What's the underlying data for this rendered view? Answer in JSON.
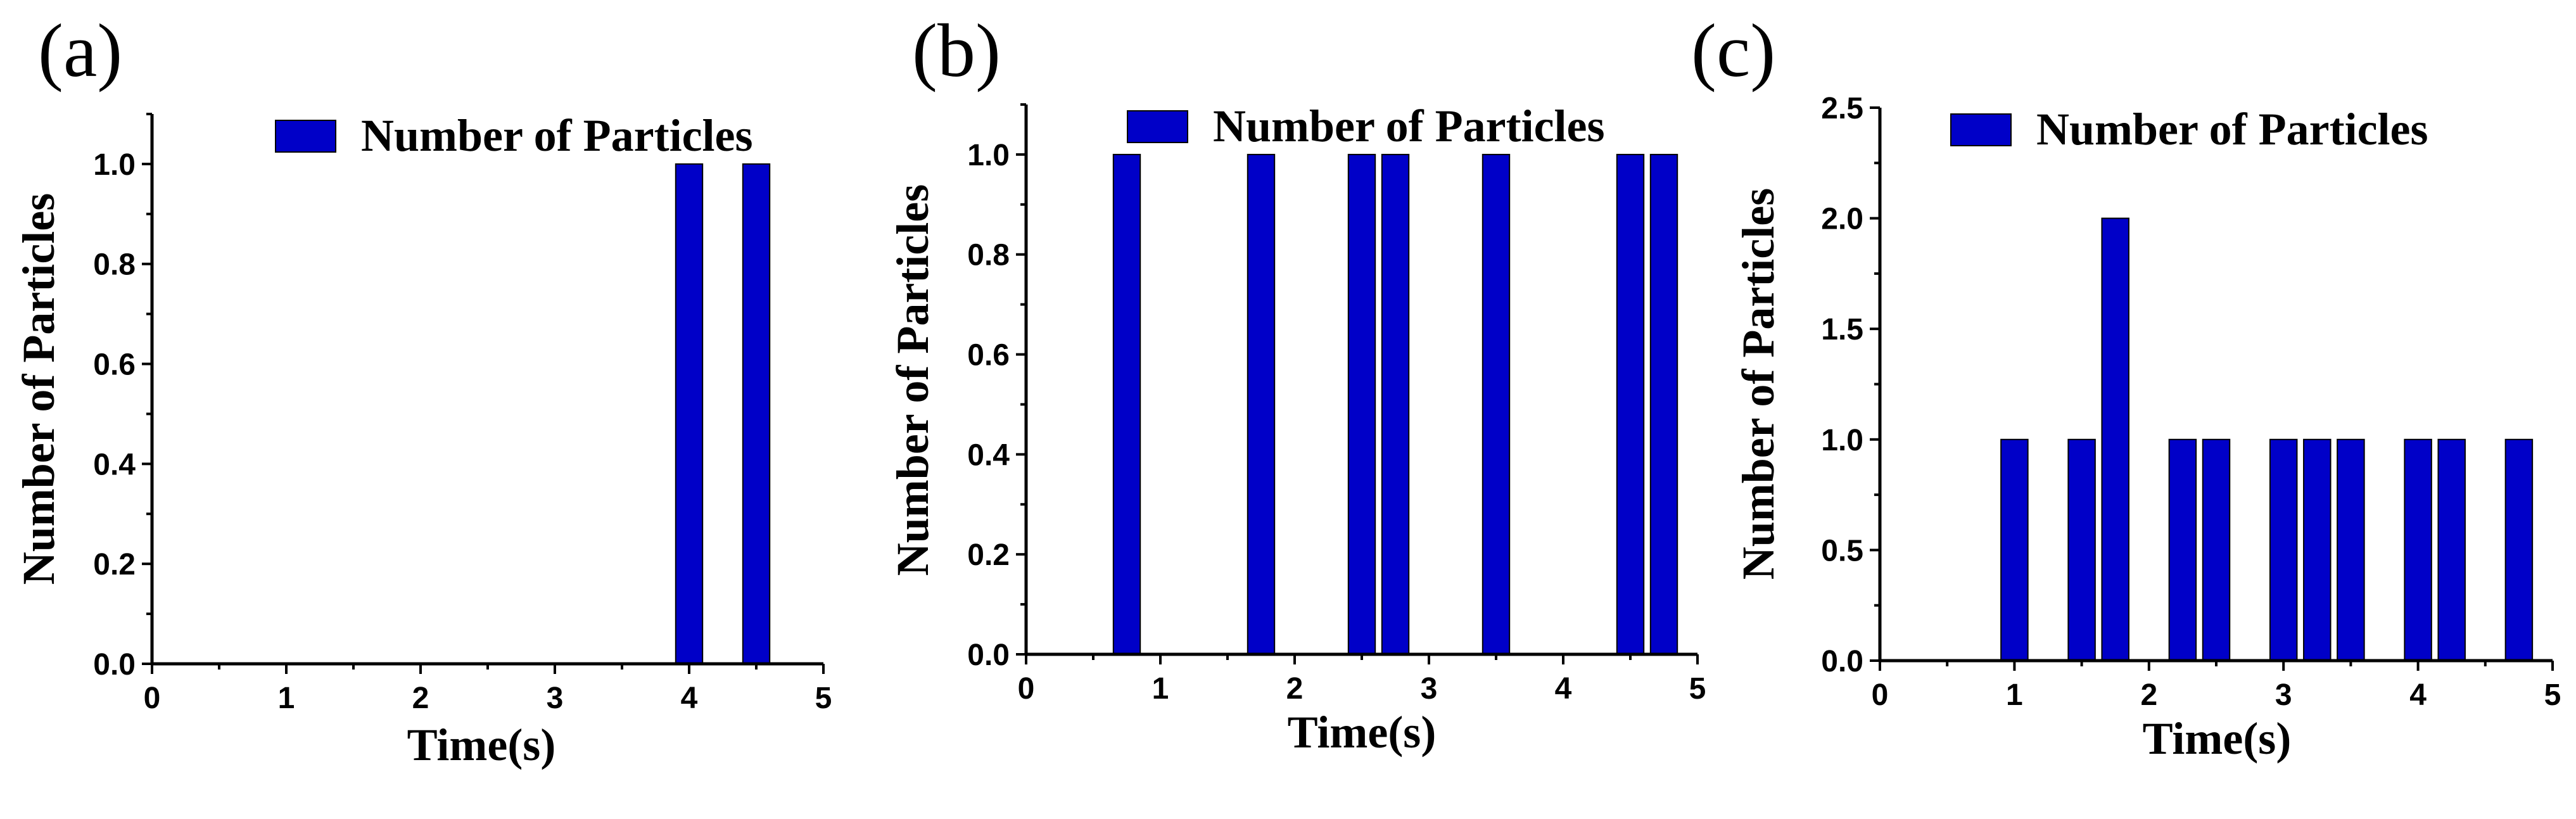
{
  "colors": {
    "bar": "#0000C8",
    "axis": "#000000",
    "background": "#FFFFFF"
  },
  "chart_data": [
    {
      "panel_label": "(a)",
      "type": "bar",
      "xlabel": "Time(s)",
      "ylabel": "Number of Particles",
      "legend": "Number of Particles",
      "legend_position": "top-right",
      "xlim": [
        0,
        5
      ],
      "ylim": [
        0,
        1.1
      ],
      "xticks": [
        "0",
        "1",
        "2",
        "3",
        "4",
        "5"
      ],
      "yticks": [
        "0.0",
        "0.2",
        "0.4",
        "0.6",
        "0.8",
        "1.0"
      ],
      "x": [
        4.0,
        4.5
      ],
      "values": [
        1,
        1
      ],
      "bar_width": 0.2
    },
    {
      "panel_label": "(b)",
      "type": "bar",
      "xlabel": "Time(s)",
      "ylabel": "Number of Particles",
      "legend": "Number of Particles",
      "legend_position": "top-right",
      "xlim": [
        0,
        5
      ],
      "ylim": [
        0,
        1.1
      ],
      "xticks": [
        "0",
        "1",
        "2",
        "3",
        "4",
        "5"
      ],
      "yticks": [
        "0.0",
        "0.2",
        "0.4",
        "0.6",
        "0.8",
        "1.0"
      ],
      "x": [
        0.75,
        1.75,
        2.5,
        2.75,
        3.5,
        4.5,
        4.75
      ],
      "values": [
        1,
        1,
        1,
        1,
        1,
        1,
        1
      ],
      "bar_width": 0.2
    },
    {
      "panel_label": "(c)",
      "type": "bar",
      "xlabel": "Time(s)",
      "ylabel": "Number of Particles",
      "legend": "Number of Particles",
      "legend_position": "top-right",
      "xlim": [
        0,
        5
      ],
      "ylim": [
        0,
        2.5
      ],
      "xticks": [
        "0",
        "1",
        "2",
        "3",
        "4",
        "5"
      ],
      "yticks": [
        "0.0",
        "0.5",
        "1.0",
        "1.5",
        "2.0",
        "2.5"
      ],
      "x": [
        1.0,
        1.5,
        1.75,
        2.25,
        2.5,
        3.0,
        3.25,
        3.5,
        4.0,
        4.25,
        4.75
      ],
      "values": [
        1,
        1,
        2,
        1,
        1,
        1,
        1,
        1,
        1,
        1,
        1
      ],
      "bar_width": 0.2
    }
  ]
}
